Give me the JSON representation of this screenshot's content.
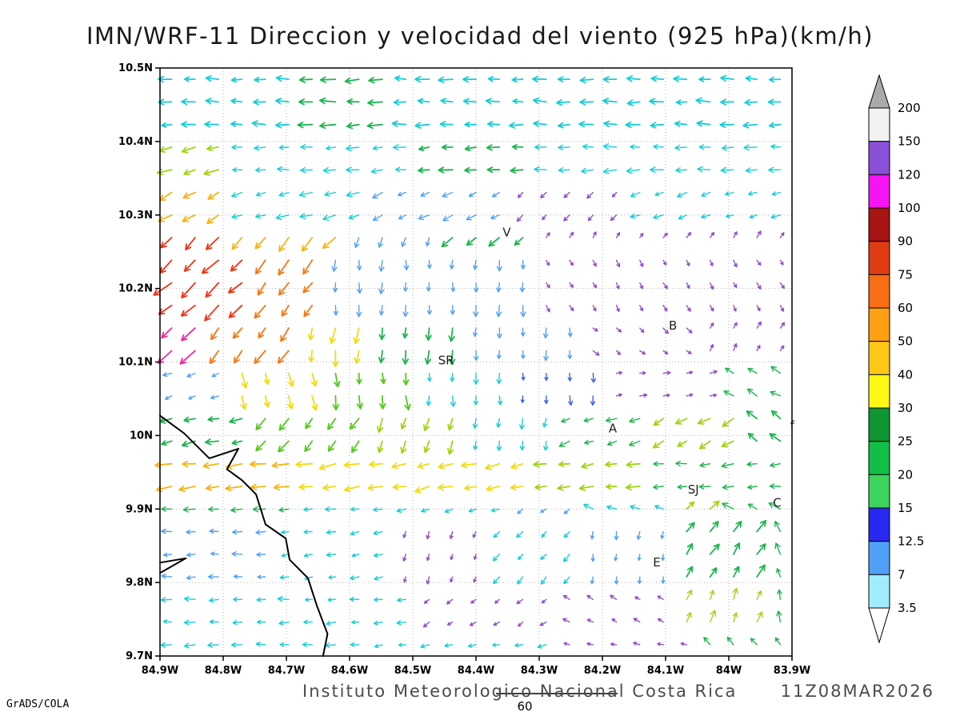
{
  "title": "IMN/WRF-11 Direccion y velocidad del viento (925 hPa)(km/h)",
  "footer": {
    "institution": "Instituto Meteorologico Nacional Costa Rica",
    "datetime": "11Z08MAR2026",
    "credit": "GrADS/COLA",
    "contour_label": "60"
  },
  "chart_data": {
    "type": "vector",
    "title": "IMN/WRF-11 Direccion y velocidad del viento (925 hPa)(km/h)",
    "x_axis": {
      "ticks": [
        "84.9W",
        "84.8W",
        "84.7W",
        "84.6W",
        "84.5W",
        "84.4W",
        "84.3W",
        "84.2W",
        "84.1W",
        "84W",
        "83.9W"
      ],
      "range_deg": [
        -84.9,
        -83.9
      ]
    },
    "y_axis": {
      "ticks": [
        "9.7N",
        "9.8N",
        "9.9N",
        "10N",
        "10.1N",
        "10.2N",
        "10.3N",
        "10.4N",
        "10.5N"
      ],
      "range_deg": [
        9.7,
        10.5
      ]
    },
    "grid": {
      "dotted": true,
      "step_deg": 0.1
    },
    "colorbar": {
      "levels_top_to_bottom": [
        200,
        150,
        120,
        100,
        90,
        75,
        60,
        50,
        40,
        30,
        25,
        20,
        15,
        12.5,
        7,
        3.5
      ],
      "band_colors_top_to_bottom": [
        "#f2f2f2",
        "#8a50d8",
        "#f414f4",
        "#a81414",
        "#e03c14",
        "#f86e14",
        "#ffa014",
        "#ffc814",
        "#fff814",
        "#0f9632",
        "#12be46",
        "#3cd45a",
        "#2828f0",
        "#50a0f8",
        "#a0ecff"
      ],
      "above_max_color": "#aaaaaa",
      "below_min_color": "#ffffff"
    },
    "stations": [
      {
        "label": "V",
        "lon": -84.358,
        "lat": 10.271
      },
      {
        "label": "B",
        "lon": -84.095,
        "lat": 10.144
      },
      {
        "label": "SR",
        "lon": -84.46,
        "lat": 10.097
      },
      {
        "label": "A",
        "lon": -84.19,
        "lat": 10.004
      },
      {
        "label": "SJ",
        "lon": -84.065,
        "lat": 9.921
      },
      {
        "label": "C",
        "lon": -83.93,
        "lat": 9.903
      },
      {
        "label": "E",
        "lon": -84.12,
        "lat": 9.822
      },
      {
        "label": "f",
        "lon": -83.903,
        "lat": 10.008
      }
    ],
    "coastline": [
      [
        [
          -84.9,
          10.027
        ],
        [
          -84.862,
          10.003
        ],
        [
          -84.822,
          9.969
        ],
        [
          -84.776,
          9.982
        ],
        [
          -84.794,
          9.954
        ],
        [
          -84.77,
          9.939
        ],
        [
          -84.748,
          9.92
        ],
        [
          -84.733,
          9.879
        ],
        [
          -84.701,
          9.86
        ],
        [
          -84.695,
          9.831
        ],
        [
          -84.666,
          9.806
        ],
        [
          -84.652,
          9.769
        ],
        [
          -84.635,
          9.73
        ],
        [
          -84.642,
          9.7
        ]
      ],
      [
        [
          -84.9,
          9.813
        ],
        [
          -84.859,
          9.833
        ],
        [
          -84.9,
          9.827
        ]
      ]
    ],
    "palette": {
      "cyan": "#18cdd4",
      "sky": "#55a0f0",
      "blue": "#3c64e6",
      "purple": "#9150c8",
      "green": "#1eb450",
      "bgreen": "#55c81e",
      "ygreen": "#a0d414",
      "yellow": "#f0dc14",
      "gold": "#f5b414",
      "orange": "#f57814",
      "red": "#f03214",
      "magenta": "#f028a0"
    },
    "vector_field": {
      "format": [
        "lat_min",
        "lat_max",
        "lon_min",
        "lon_max",
        "dir_deg_ccw_from_east",
        "length_px",
        "color_key"
      ],
      "regions": [
        [
          10.42,
          10.51,
          -84.68,
          -84.52,
          182,
          17,
          "green"
        ],
        [
          10.42,
          10.51,
          -84.9,
          -83.9,
          180,
          15,
          "cyan"
        ],
        [
          10.36,
          10.42,
          -84.9,
          -84.78,
          195,
          17,
          "ygreen"
        ],
        [
          10.36,
          10.42,
          -84.5,
          -84.3,
          185,
          15,
          "green"
        ],
        [
          10.36,
          10.42,
          -84.78,
          -83.9,
          183,
          14,
          "cyan"
        ],
        [
          10.3,
          10.36,
          -84.9,
          -84.8,
          210,
          17,
          "gold"
        ],
        [
          10.3,
          10.36,
          -84.8,
          -84.55,
          195,
          14,
          "cyan"
        ],
        [
          10.3,
          10.36,
          -84.55,
          -84.35,
          205,
          12,
          "sky"
        ],
        [
          10.3,
          10.36,
          -84.35,
          -84.15,
          230,
          9,
          "purple"
        ],
        [
          10.3,
          10.36,
          -84.15,
          -83.9,
          200,
          11,
          "cyan"
        ],
        [
          10.24,
          10.3,
          -84.9,
          -84.79,
          225,
          21,
          "red"
        ],
        [
          10.24,
          10.3,
          -84.79,
          -84.62,
          228,
          18,
          "gold"
        ],
        [
          10.24,
          10.3,
          -84.62,
          -84.46,
          250,
          12,
          "sky"
        ],
        [
          10.24,
          10.3,
          -84.46,
          -84.3,
          225,
          15,
          "green"
        ],
        [
          10.24,
          10.3,
          -84.3,
          -83.9,
          55,
          8,
          "purple"
        ],
        [
          10.17,
          10.24,
          -84.9,
          -84.77,
          222,
          23,
          "red"
        ],
        [
          10.17,
          10.24,
          -84.77,
          -84.63,
          235,
          19,
          "orange"
        ],
        [
          10.17,
          10.24,
          -84.63,
          -84.3,
          268,
          12,
          "sky"
        ],
        [
          10.17,
          10.24,
          -84.3,
          -83.9,
          300,
          8,
          "purple"
        ],
        [
          10.11,
          10.17,
          -84.9,
          -84.81,
          228,
          21,
          "magenta"
        ],
        [
          10.11,
          10.17,
          -84.81,
          -84.68,
          233,
          18,
          "orange"
        ],
        [
          10.11,
          10.17,
          -84.68,
          -84.57,
          262,
          17,
          "yellow"
        ],
        [
          10.11,
          10.17,
          -84.57,
          -84.4,
          268,
          15,
          "green"
        ],
        [
          10.11,
          10.17,
          -84.4,
          -84.24,
          268,
          11,
          "sky"
        ],
        [
          10.11,
          10.17,
          -84.24,
          -84.04,
          320,
          8,
          "purple"
        ],
        [
          10.11,
          10.17,
          -84.04,
          -83.9,
          60,
          8,
          "purple"
        ],
        [
          10.05,
          10.11,
          -84.9,
          -84.78,
          200,
          10,
          "sky"
        ],
        [
          10.05,
          10.11,
          -84.78,
          -84.63,
          278,
          17,
          "yellow"
        ],
        [
          10.05,
          10.11,
          -84.63,
          -84.5,
          278,
          15,
          "bgreen"
        ],
        [
          10.05,
          10.11,
          -84.5,
          -84.33,
          270,
          12,
          "cyan"
        ],
        [
          10.05,
          10.11,
          -84.33,
          -84.18,
          272,
          10,
          "blue"
        ],
        [
          10.05,
          10.11,
          -84.18,
          -84.0,
          10,
          8,
          "purple"
        ],
        [
          10.05,
          10.11,
          -84.0,
          -83.9,
          150,
          14,
          "green"
        ],
        [
          9.98,
          10.05,
          -84.9,
          -84.74,
          192,
          15,
          "green"
        ],
        [
          9.98,
          10.05,
          -84.74,
          -84.58,
          230,
          16,
          "bgreen"
        ],
        [
          9.98,
          10.05,
          -84.58,
          -84.43,
          252,
          16,
          "ygreen"
        ],
        [
          9.98,
          10.05,
          -84.43,
          -84.28,
          262,
          12,
          "cyan"
        ],
        [
          9.98,
          10.05,
          -84.28,
          -84.13,
          200,
          13,
          "green"
        ],
        [
          9.98,
          10.05,
          -84.13,
          -83.97,
          210,
          15,
          "ygreen"
        ],
        [
          9.98,
          10.05,
          -83.97,
          -83.9,
          145,
          15,
          "green"
        ],
        [
          9.93,
          9.98,
          -84.9,
          -84.68,
          187,
          19,
          "gold"
        ],
        [
          9.93,
          9.98,
          -84.68,
          -84.48,
          190,
          19,
          "yellow"
        ],
        [
          9.93,
          9.98,
          -84.48,
          -84.3,
          193,
          17,
          "yellow"
        ],
        [
          9.93,
          9.98,
          -84.3,
          -84.13,
          190,
          15,
          "ygreen"
        ],
        [
          9.93,
          9.98,
          -84.13,
          -83.9,
          185,
          13,
          "green"
        ],
        [
          9.87,
          9.93,
          -84.9,
          -84.68,
          185,
          13,
          "green"
        ],
        [
          9.87,
          9.93,
          -84.68,
          -84.52,
          186,
          11,
          "cyan"
        ],
        [
          9.87,
          9.93,
          -84.52,
          -84.36,
          200,
          11,
          "cyan"
        ],
        [
          9.87,
          9.93,
          -84.36,
          -84.22,
          215,
          9,
          "sky"
        ],
        [
          9.87,
          9.93,
          -84.22,
          -84.1,
          160,
          11,
          "cyan"
        ],
        [
          9.87,
          9.93,
          -84.1,
          -84.0,
          45,
          15,
          "ygreen"
        ],
        [
          9.87,
          9.93,
          -84.0,
          -83.9,
          155,
          14,
          "green"
        ],
        [
          9.8,
          9.87,
          -84.9,
          -84.7,
          182,
          11,
          "sky"
        ],
        [
          9.8,
          9.87,
          -84.7,
          -84.54,
          190,
          10,
          "cyan"
        ],
        [
          9.8,
          9.87,
          -84.54,
          -84.38,
          250,
          8,
          "purple"
        ],
        [
          9.8,
          9.87,
          -84.38,
          -84.24,
          230,
          10,
          "cyan"
        ],
        [
          9.8,
          9.87,
          -84.24,
          -84.1,
          262,
          9,
          "sky"
        ],
        [
          9.8,
          9.87,
          -84.1,
          -83.95,
          55,
          15,
          "green"
        ],
        [
          9.8,
          9.87,
          -83.95,
          -83.9,
          115,
          13,
          "green"
        ],
        [
          9.74,
          9.8,
          -84.9,
          -84.68,
          182,
          12,
          "cyan"
        ],
        [
          9.74,
          9.8,
          -84.68,
          -84.48,
          186,
          10,
          "cyan"
        ],
        [
          9.74,
          9.8,
          -84.48,
          -84.28,
          215,
          8,
          "purple"
        ],
        [
          9.74,
          9.8,
          -84.28,
          -84.1,
          150,
          8,
          "purple"
        ],
        [
          9.74,
          9.8,
          -84.1,
          -83.95,
          70,
          14,
          "ygreen"
        ],
        [
          9.74,
          9.8,
          -83.95,
          -83.9,
          100,
          12,
          "green"
        ],
        [
          9.69,
          9.74,
          -84.9,
          -84.58,
          182,
          12,
          "cyan"
        ],
        [
          9.69,
          9.74,
          -84.58,
          -84.28,
          190,
          10,
          "cyan"
        ],
        [
          9.69,
          9.74,
          -84.28,
          -84.04,
          170,
          8,
          "purple"
        ],
        [
          9.69,
          9.74,
          -84.04,
          -83.9,
          130,
          12,
          "green"
        ]
      ]
    }
  }
}
